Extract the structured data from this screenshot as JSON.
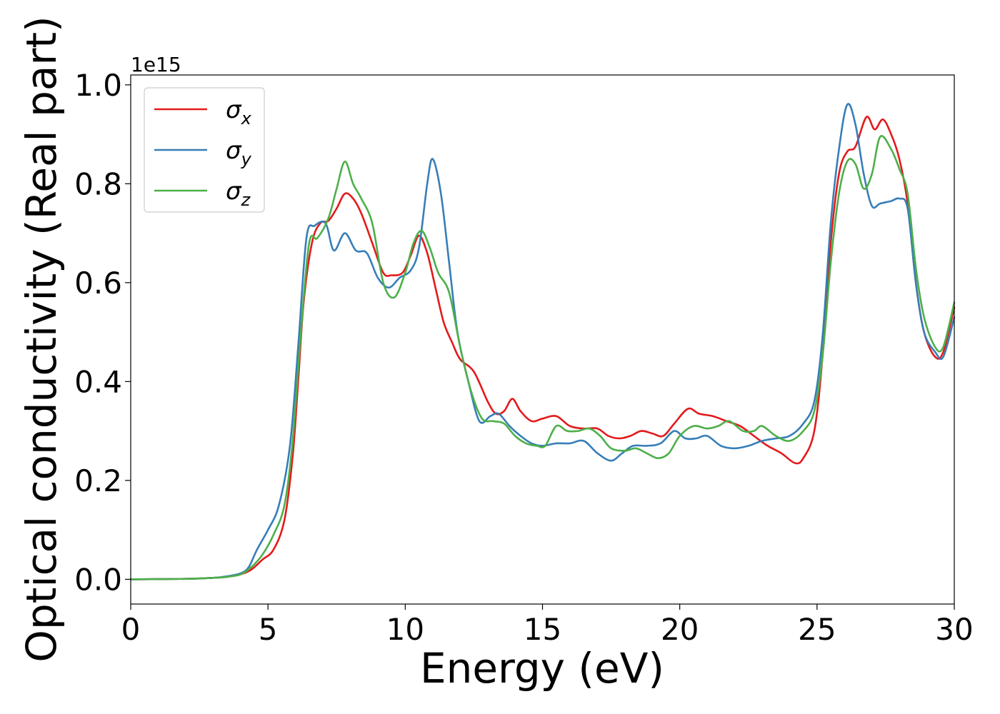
{
  "chart_data": {
    "type": "line",
    "title": "",
    "xlabel": "Energy (eV)",
    "ylabel": "Optical conductivity (Real part)",
    "offset_text": "1e15",
    "xlim": [
      0,
      30
    ],
    "ylim": [
      -0.05,
      1.02
    ],
    "xticks": [
      0,
      5,
      10,
      15,
      20,
      25,
      30
    ],
    "xtick_labels": [
      "0",
      "5",
      "10",
      "15",
      "20",
      "25",
      "30"
    ],
    "yticks": [
      0.0,
      0.2,
      0.4,
      0.6,
      0.8,
      1.0
    ],
    "ytick_labels": [
      "0.0",
      "0.2",
      "0.4",
      "0.6",
      "0.8",
      "1.0"
    ],
    "grid": false,
    "legend_position": "top-left",
    "series": [
      {
        "name": "σx",
        "legend_base": "σ",
        "legend_sub": "x",
        "color": "#e41a1c",
        "points": [
          [
            0,
            0
          ],
          [
            2,
            0.001
          ],
          [
            3,
            0.003
          ],
          [
            3.5,
            0.005
          ],
          [
            4,
            0.01
          ],
          [
            4.4,
            0.02
          ],
          [
            4.8,
            0.04
          ],
          [
            5.2,
            0.06
          ],
          [
            5.6,
            0.12
          ],
          [
            5.9,
            0.25
          ],
          [
            6.1,
            0.4
          ],
          [
            6.3,
            0.56
          ],
          [
            6.6,
            0.68
          ],
          [
            6.9,
            0.72
          ],
          [
            7.2,
            0.725
          ],
          [
            7.5,
            0.75
          ],
          [
            7.8,
            0.78
          ],
          [
            8.1,
            0.77
          ],
          [
            8.4,
            0.74
          ],
          [
            8.8,
            0.68
          ],
          [
            9.2,
            0.62
          ],
          [
            9.5,
            0.615
          ],
          [
            9.9,
            0.62
          ],
          [
            10.2,
            0.655
          ],
          [
            10.5,
            0.695
          ],
          [
            10.8,
            0.66
          ],
          [
            11.1,
            0.59
          ],
          [
            11.4,
            0.52
          ],
          [
            11.7,
            0.48
          ],
          [
            12,
            0.445
          ],
          [
            12.5,
            0.42
          ],
          [
            13,
            0.36
          ],
          [
            13.3,
            0.335
          ],
          [
            13.6,
            0.34
          ],
          [
            13.9,
            0.365
          ],
          [
            14.2,
            0.34
          ],
          [
            14.6,
            0.32
          ],
          [
            15,
            0.325
          ],
          [
            15.5,
            0.33
          ],
          [
            16,
            0.31
          ],
          [
            16.5,
            0.305
          ],
          [
            17,
            0.305
          ],
          [
            17.4,
            0.29
          ],
          [
            17.8,
            0.285
          ],
          [
            18.2,
            0.29
          ],
          [
            18.6,
            0.3
          ],
          [
            19,
            0.295
          ],
          [
            19.4,
            0.29
          ],
          [
            19.8,
            0.315
          ],
          [
            20.3,
            0.345
          ],
          [
            20.7,
            0.335
          ],
          [
            21.2,
            0.33
          ],
          [
            21.7,
            0.32
          ],
          [
            22.2,
            0.31
          ],
          [
            22.7,
            0.29
          ],
          [
            23.2,
            0.27
          ],
          [
            23.7,
            0.255
          ],
          [
            24.2,
            0.235
          ],
          [
            24.5,
            0.245
          ],
          [
            24.9,
            0.3
          ],
          [
            25.2,
            0.45
          ],
          [
            25.5,
            0.68
          ],
          [
            25.8,
            0.82
          ],
          [
            26.1,
            0.865
          ],
          [
            26.4,
            0.875
          ],
          [
            26.8,
            0.935
          ],
          [
            27.1,
            0.91
          ],
          [
            27.4,
            0.93
          ],
          [
            27.7,
            0.9
          ],
          [
            28,
            0.85
          ],
          [
            28.3,
            0.76
          ],
          [
            28.6,
            0.6
          ],
          [
            28.9,
            0.5
          ],
          [
            29.3,
            0.45
          ],
          [
            29.6,
            0.46
          ],
          [
            30,
            0.55
          ]
        ]
      },
      {
        "name": "σy",
        "legend_base": "σ",
        "legend_sub": "y",
        "color": "#377eb8",
        "points": [
          [
            0,
            0
          ],
          [
            2,
            0.001
          ],
          [
            3,
            0.003
          ],
          [
            3.5,
            0.006
          ],
          [
            4,
            0.012
          ],
          [
            4.3,
            0.025
          ],
          [
            4.6,
            0.06
          ],
          [
            5,
            0.1
          ],
          [
            5.4,
            0.15
          ],
          [
            5.8,
            0.27
          ],
          [
            6.1,
            0.47
          ],
          [
            6.4,
            0.69
          ],
          [
            6.7,
            0.715
          ],
          [
            7.1,
            0.72
          ],
          [
            7.4,
            0.665
          ],
          [
            7.8,
            0.7
          ],
          [
            8.2,
            0.665
          ],
          [
            8.6,
            0.66
          ],
          [
            9,
            0.61
          ],
          [
            9.4,
            0.59
          ],
          [
            9.8,
            0.61
          ],
          [
            10.2,
            0.625
          ],
          [
            10.5,
            0.67
          ],
          [
            10.8,
            0.8
          ],
          [
            11,
            0.85
          ],
          [
            11.3,
            0.78
          ],
          [
            11.6,
            0.64
          ],
          [
            11.9,
            0.5
          ],
          [
            12.3,
            0.4
          ],
          [
            12.7,
            0.32
          ],
          [
            13.1,
            0.33
          ],
          [
            13.4,
            0.335
          ],
          [
            13.8,
            0.31
          ],
          [
            14.2,
            0.29
          ],
          [
            14.6,
            0.275
          ],
          [
            15,
            0.27
          ],
          [
            15.5,
            0.275
          ],
          [
            16,
            0.275
          ],
          [
            16.5,
            0.28
          ],
          [
            17,
            0.255
          ],
          [
            17.5,
            0.24
          ],
          [
            17.9,
            0.255
          ],
          [
            18.3,
            0.27
          ],
          [
            18.8,
            0.27
          ],
          [
            19.3,
            0.275
          ],
          [
            19.8,
            0.3
          ],
          [
            20.2,
            0.285
          ],
          [
            20.6,
            0.285
          ],
          [
            21,
            0.29
          ],
          [
            21.5,
            0.27
          ],
          [
            22,
            0.265
          ],
          [
            22.5,
            0.27
          ],
          [
            23,
            0.28
          ],
          [
            23.5,
            0.285
          ],
          [
            24,
            0.29
          ],
          [
            24.5,
            0.315
          ],
          [
            24.9,
            0.36
          ],
          [
            25.2,
            0.49
          ],
          [
            25.5,
            0.72
          ],
          [
            25.8,
            0.87
          ],
          [
            26.1,
            0.96
          ],
          [
            26.4,
            0.92
          ],
          [
            26.7,
            0.82
          ],
          [
            27,
            0.755
          ],
          [
            27.3,
            0.76
          ],
          [
            27.7,
            0.765
          ],
          [
            28,
            0.77
          ],
          [
            28.3,
            0.75
          ],
          [
            28.6,
            0.6
          ],
          [
            28.9,
            0.5
          ],
          [
            29.3,
            0.46
          ],
          [
            29.6,
            0.45
          ],
          [
            30,
            0.53
          ]
        ]
      },
      {
        "name": "σz",
        "legend_base": "σ",
        "legend_sub": "z",
        "color": "#4daf4a",
        "points": [
          [
            0,
            0
          ],
          [
            2,
            0.001
          ],
          [
            3,
            0.003
          ],
          [
            3.5,
            0.005
          ],
          [
            4,
            0.01
          ],
          [
            4.4,
            0.025
          ],
          [
            4.8,
            0.05
          ],
          [
            5.2,
            0.09
          ],
          [
            5.6,
            0.15
          ],
          [
            5.9,
            0.28
          ],
          [
            6.2,
            0.5
          ],
          [
            6.5,
            0.68
          ],
          [
            6.8,
            0.69
          ],
          [
            7.2,
            0.73
          ],
          [
            7.5,
            0.79
          ],
          [
            7.8,
            0.845
          ],
          [
            8.1,
            0.8
          ],
          [
            8.4,
            0.77
          ],
          [
            8.8,
            0.72
          ],
          [
            9.2,
            0.6
          ],
          [
            9.6,
            0.57
          ],
          [
            10,
            0.62
          ],
          [
            10.3,
            0.68
          ],
          [
            10.6,
            0.705
          ],
          [
            10.9,
            0.67
          ],
          [
            11.2,
            0.62
          ],
          [
            11.6,
            0.58
          ],
          [
            12,
            0.47
          ],
          [
            12.4,
            0.38
          ],
          [
            12.8,
            0.325
          ],
          [
            13.2,
            0.32
          ],
          [
            13.6,
            0.315
          ],
          [
            14,
            0.29
          ],
          [
            14.4,
            0.275
          ],
          [
            14.8,
            0.27
          ],
          [
            15.1,
            0.27
          ],
          [
            15.5,
            0.31
          ],
          [
            15.9,
            0.3
          ],
          [
            16.3,
            0.3
          ],
          [
            16.7,
            0.305
          ],
          [
            17.1,
            0.29
          ],
          [
            17.5,
            0.265
          ],
          [
            18,
            0.26
          ],
          [
            18.4,
            0.265
          ],
          [
            18.8,
            0.255
          ],
          [
            19.2,
            0.245
          ],
          [
            19.6,
            0.255
          ],
          [
            20,
            0.29
          ],
          [
            20.5,
            0.31
          ],
          [
            21,
            0.305
          ],
          [
            21.4,
            0.31
          ],
          [
            21.8,
            0.32
          ],
          [
            22.3,
            0.3
          ],
          [
            22.7,
            0.3
          ],
          [
            23,
            0.31
          ],
          [
            23.5,
            0.29
          ],
          [
            24,
            0.28
          ],
          [
            24.5,
            0.3
          ],
          [
            24.9,
            0.34
          ],
          [
            25.2,
            0.45
          ],
          [
            25.5,
            0.64
          ],
          [
            25.8,
            0.78
          ],
          [
            26.1,
            0.845
          ],
          [
            26.4,
            0.84
          ],
          [
            26.7,
            0.79
          ],
          [
            27,
            0.82
          ],
          [
            27.3,
            0.895
          ],
          [
            27.7,
            0.87
          ],
          [
            28,
            0.83
          ],
          [
            28.3,
            0.78
          ],
          [
            28.6,
            0.63
          ],
          [
            28.9,
            0.53
          ],
          [
            29.3,
            0.47
          ],
          [
            29.6,
            0.47
          ],
          [
            30,
            0.56
          ]
        ]
      }
    ]
  }
}
